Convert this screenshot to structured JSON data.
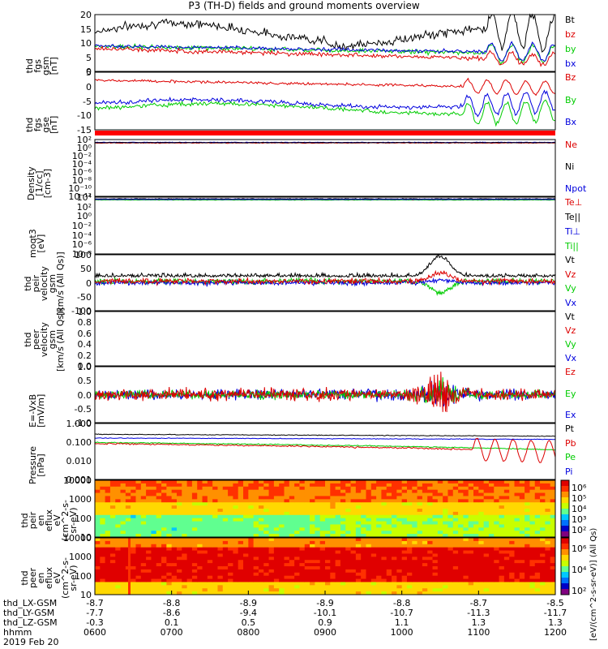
{
  "title": "P3 (TH-D) fields and ground moments overview",
  "colors": {
    "black": "#000000",
    "red": "#dd0000",
    "green": "#00cc00",
    "blue": "#0000dd"
  },
  "chart_data": [
    {
      "type": "line",
      "panel": "fgs-gsm",
      "ylabel": [
        "thd",
        "fgs",
        "gsm",
        "[nT]"
      ],
      "ylim": [
        0,
        20
      ],
      "yticks": [
        "20",
        "15",
        "10",
        "5",
        "0"
      ],
      "series": [
        {
          "name": "Bt",
          "color": "black"
        },
        {
          "name": "bz",
          "color": "red"
        },
        {
          "name": "by",
          "color": "green"
        },
        {
          "name": "bx",
          "color": "blue"
        }
      ]
    },
    {
      "type": "line",
      "panel": "fgs-gse",
      "ylabel": [
        "thd",
        "fgs",
        "gse",
        "[nT]"
      ],
      "ylim": [
        -17,
        5
      ],
      "yticks": [
        "5",
        "0",
        "-5",
        "-10",
        "-15"
      ],
      "series": [
        {
          "name": "Bz",
          "color": "red"
        },
        {
          "name": "By",
          "color": "green"
        },
        {
          "name": "Bx",
          "color": "blue"
        }
      ]
    },
    {
      "type": "line",
      "panel": "density",
      "ylabel": [
        "Density",
        "[1/cc]",
        "[cm-3]"
      ],
      "scale": "log",
      "yticks": [
        "10²",
        "10⁰",
        "10⁻²",
        "10⁻⁴",
        "10⁻⁶",
        "10⁻⁸",
        "10⁻¹⁰",
        "10⁻¹²"
      ],
      "series": [
        {
          "name": "Ne",
          "color": "red"
        },
        {
          "name": "Ni",
          "color": "black"
        },
        {
          "name": "Npot",
          "color": "blue"
        }
      ]
    },
    {
      "type": "line",
      "panel": "temperature",
      "ylabel": [
        "moqt3",
        "[eV]"
      ],
      "scale": "log",
      "yticks": [
        "10⁴",
        "10²",
        "10⁰",
        "10⁻²",
        "10⁻⁴",
        "10⁻⁶",
        "10⁻⁸"
      ],
      "series": [
        {
          "name": "Te⊥",
          "color": "red"
        },
        {
          "name": "Te||",
          "color": "black"
        },
        {
          "name": "Ti⊥",
          "color": "blue"
        },
        {
          "name": "Ti||",
          "color": "green"
        }
      ]
    },
    {
      "type": "line",
      "panel": "peir-velocity",
      "ylabel": [
        "thd",
        "peir",
        "velocity",
        "gsm",
        "[km/s (All Qs)]"
      ],
      "ylim": [
        -100,
        100
      ],
      "yticks": [
        "100",
        "50",
        "0",
        "-50",
        "-100"
      ],
      "series": [
        {
          "name": "Vt",
          "color": "black"
        },
        {
          "name": "Vz",
          "color": "red"
        },
        {
          "name": "Vy",
          "color": "green"
        },
        {
          "name": "Vx",
          "color": "blue"
        }
      ]
    },
    {
      "type": "line",
      "panel": "peer-velocity",
      "ylabel": [
        "thd",
        "peer",
        "velocity",
        "gsm",
        "[km/s (All Qs)]"
      ],
      "ylim": [
        0,
        1
      ],
      "yticks": [
        "1.0",
        "0.8",
        "0.6",
        "0.4",
        "0.2",
        "0.0"
      ],
      "series": [
        {
          "name": "Vt",
          "color": "black"
        },
        {
          "name": "Vz",
          "color": "red"
        },
        {
          "name": "Vy",
          "color": "green"
        },
        {
          "name": "Vx",
          "color": "blue"
        }
      ]
    },
    {
      "type": "line",
      "panel": "efield",
      "ylabel": [
        "E=-VxB",
        "[mV/m]"
      ],
      "ylim": [
        -1,
        1
      ],
      "yticks": [
        "1.0",
        "0.5",
        "0.0",
        "-0.5",
        "-1.0"
      ],
      "series": [
        {
          "name": "Ez",
          "color": "red"
        },
        {
          "name": "Ey",
          "color": "green"
        },
        {
          "name": "Ex",
          "color": "blue"
        }
      ]
    },
    {
      "type": "line",
      "panel": "pressure",
      "ylabel": [
        "Pressure",
        "[nPa]"
      ],
      "scale": "log",
      "yticks": [
        "1.000",
        "0.100",
        "0.010",
        "0.001"
      ],
      "series": [
        {
          "name": "Pt",
          "color": "black"
        },
        {
          "name": "Pb",
          "color": "red"
        },
        {
          "name": "Pe",
          "color": "green"
        },
        {
          "name": "Pi",
          "color": "blue"
        }
      ]
    },
    {
      "type": "heatmap",
      "panel": "peir-eflux",
      "ylabel": [
        "thd",
        "peir",
        "en",
        "eflux",
        "eV",
        "(cm^2-s-",
        "sr-eV)"
      ],
      "scale": "log",
      "yticks": [
        "10000",
        "1000",
        "100",
        "10"
      ]
    },
    {
      "type": "heatmap",
      "panel": "peer-eflux",
      "ylabel": [
        "thd",
        "peer",
        "en",
        "eflux",
        "eV",
        "(cm^2-s-",
        "sr-eV)"
      ],
      "scale": "log",
      "yticks": [
        "10000",
        "1000",
        "100",
        "10"
      ]
    }
  ],
  "colorbar": {
    "label": "[eV/(cm^2-s-sr-eV)] (All Qs)",
    "ticks": [
      "10⁶",
      "10⁵",
      "10⁴",
      "10³",
      "10²"
    ],
    "ticks2": [
      "10⁶",
      "10⁴",
      "10²"
    ]
  },
  "xaxis": {
    "rows": [
      {
        "label": "thd_LX-GSM",
        "values": [
          "-8.7",
          "-8.8",
          "-8.9",
          "-8.9",
          "-8.8",
          "-8.7",
          "-8.5"
        ]
      },
      {
        "label": "thd_LY-GSM",
        "values": [
          "-7.7",
          "-8.6",
          "-9.4",
          "-10.1",
          "-10.7",
          "-11.3",
          "-11.7"
        ]
      },
      {
        "label": "thd_LZ-GSM",
        "values": [
          "-0.3",
          "0.1",
          "0.5",
          "0.9",
          "1.1",
          "1.3",
          "1.3"
        ]
      },
      {
        "label": "hhmm",
        "values": [
          "0600",
          "0700",
          "0800",
          "0900",
          "1000",
          "1100",
          "1200"
        ]
      }
    ],
    "date": "2019 Feb 20"
  }
}
